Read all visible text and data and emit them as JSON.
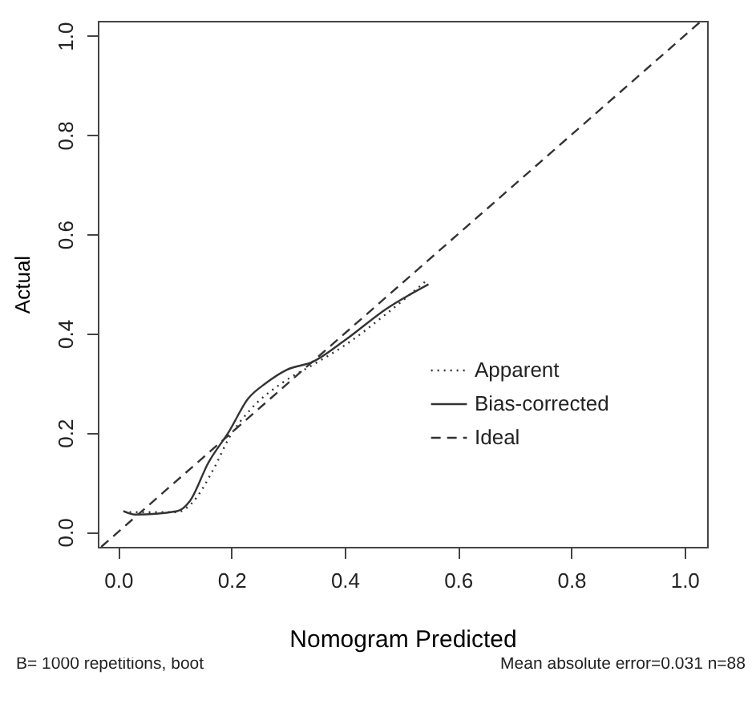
{
  "chart_data": {
    "type": "line",
    "xlabel": "Nomogram Predicted",
    "ylabel": "Actual",
    "xlim": [
      -0.036,
      1.04
    ],
    "ylim": [
      -0.03,
      1.03
    ],
    "xticks": [
      {
        "value": 0,
        "label": "0.0"
      },
      0.2,
      0.4,
      0.6,
      0.8,
      {
        "value": 1,
        "label": "1.0"
      }
    ],
    "yticks": [
      {
        "value": 0,
        "label": "0.0"
      },
      0.2,
      0.4,
      0.6,
      0.8,
      {
        "value": 1,
        "label": "1.0"
      }
    ],
    "grid": false,
    "legend": "bottom right",
    "annotations": [
      "B= 1000 repetitions, boot",
      "Mean absolute error=0.031 n=88"
    ],
    "series": [
      {
        "name": "Apparent",
        "color": "#333333",
        "line_style": "dotted",
        "x": [
          0.02,
          0.104,
          0.13,
          0.169,
          0.196,
          0.233,
          0.289,
          0.344,
          0.4,
          0.474,
          0.548
        ],
        "values": [
          0.04,
          0.04,
          0.058,
          0.128,
          0.19,
          0.246,
          0.3,
          0.337,
          0.376,
          0.44,
          0.51
        ]
      },
      {
        "name": "Bias-corrected",
        "color": "#333333",
        "line_style": "solid",
        "x": [
          0.009,
          0.03,
          0.104,
          0.127,
          0.159,
          0.196,
          0.229,
          0.261,
          0.298,
          0.344,
          0.4,
          0.474,
          0.548
        ],
        "values": [
          0.042,
          0.035,
          0.042,
          0.063,
          0.139,
          0.203,
          0.268,
          0.3,
          0.327,
          0.343,
          0.386,
          0.45,
          0.499
        ]
      },
      {
        "name": "Ideal",
        "color": "#333333",
        "line_style": "dashed",
        "x": [
          -0.03,
          1.03
        ],
        "values": [
          -0.03,
          1.03
        ]
      }
    ]
  }
}
